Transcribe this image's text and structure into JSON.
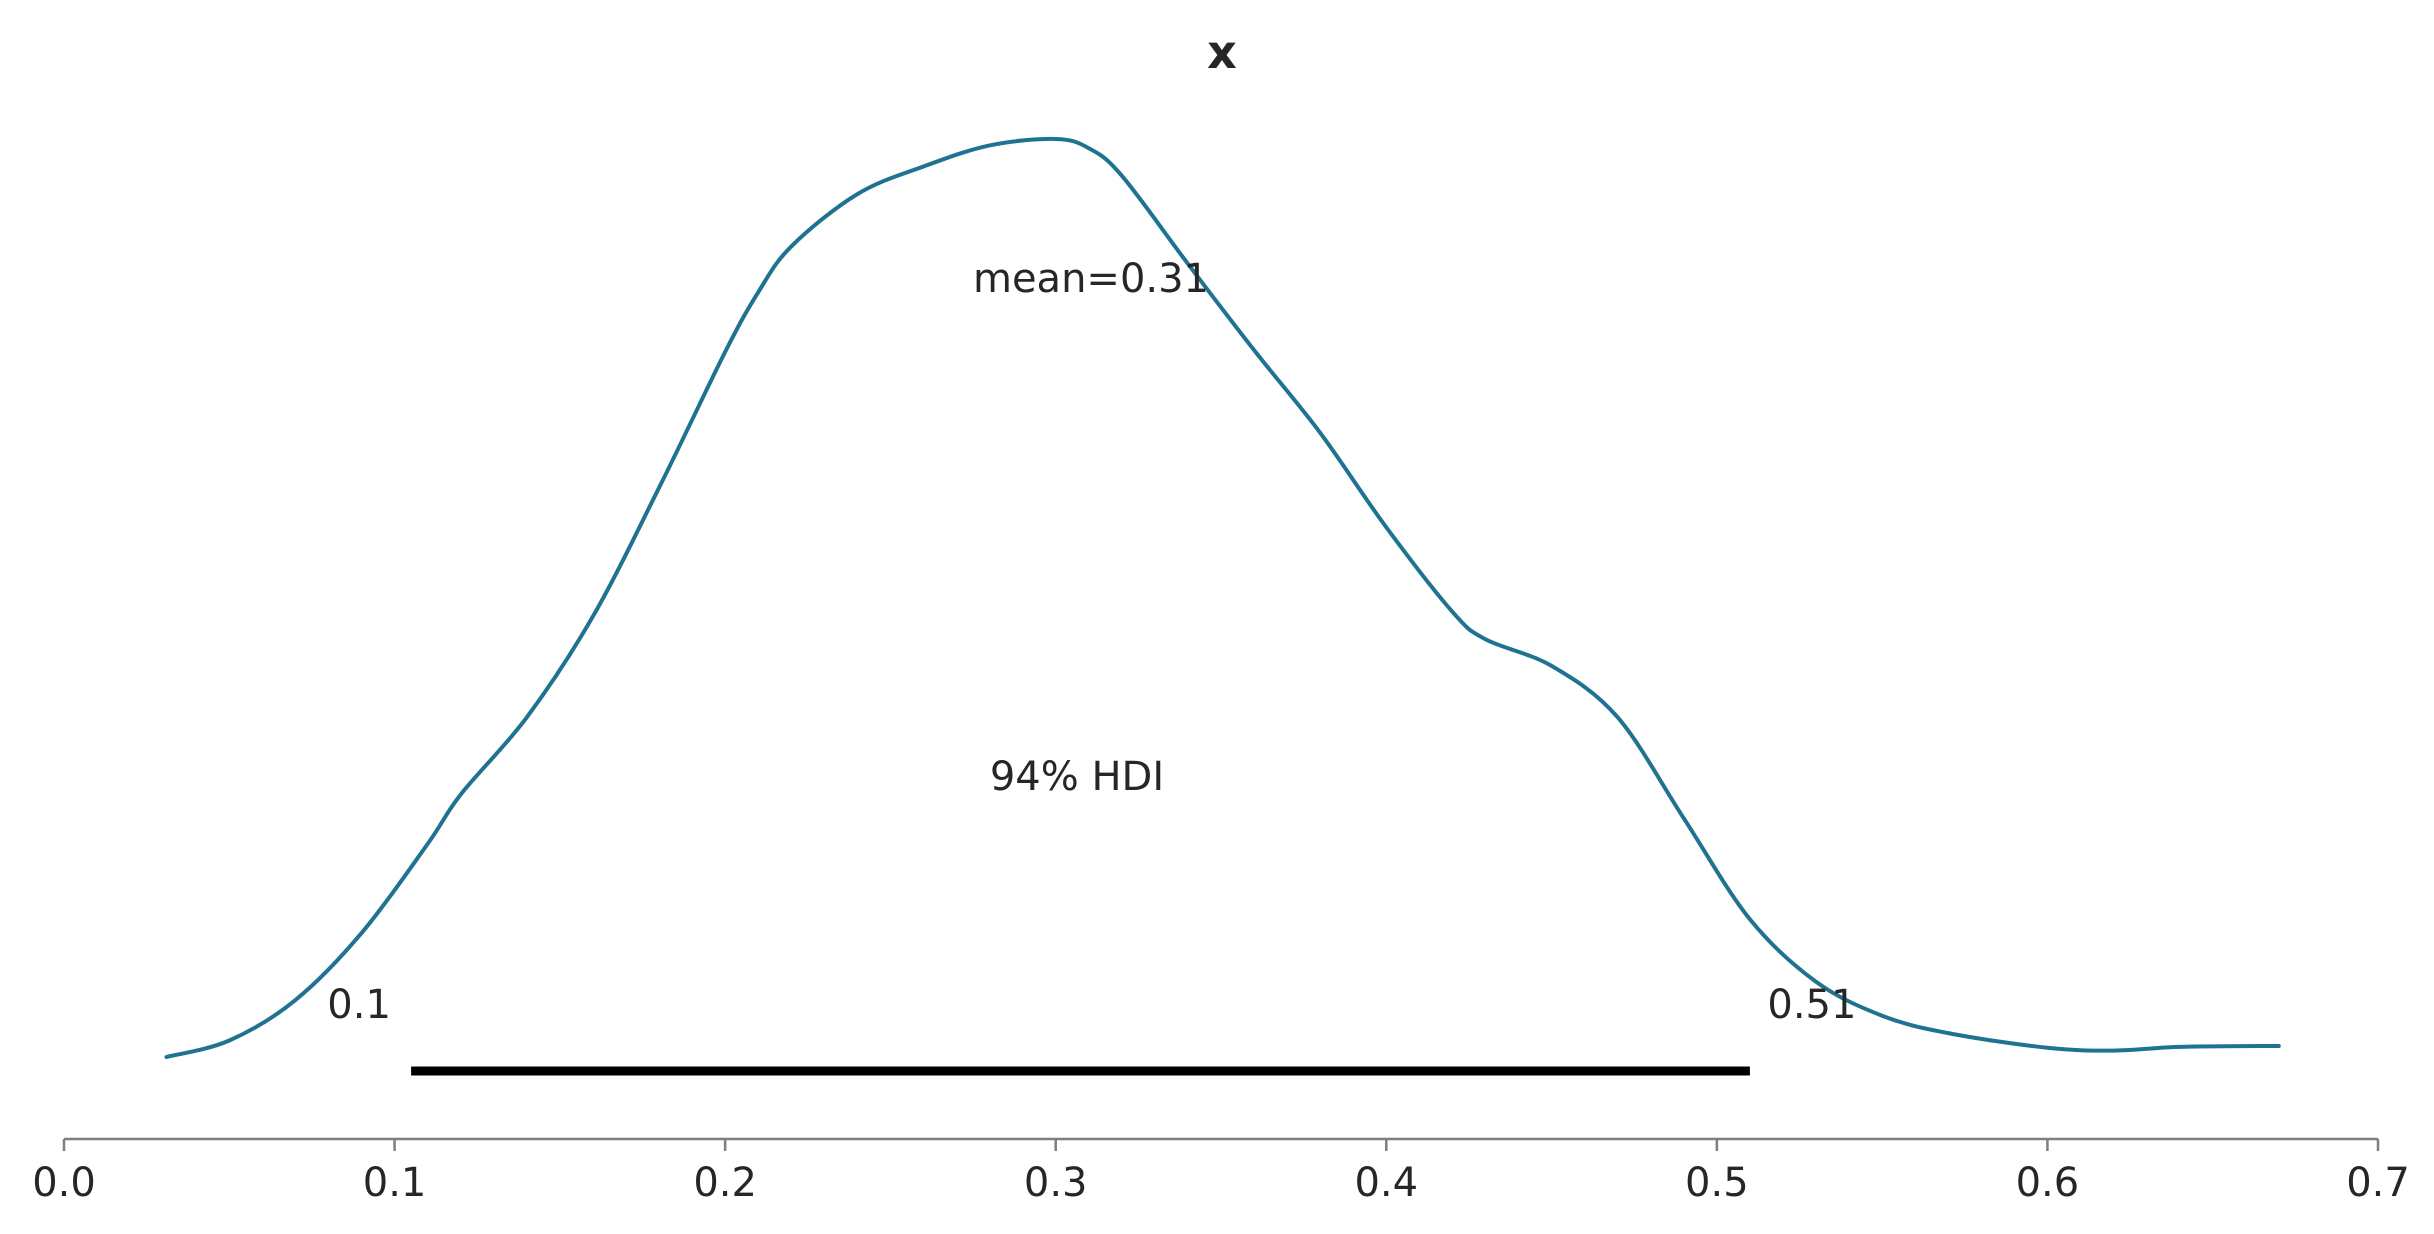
{
  "chart_data": {
    "type": "line",
    "title": "x",
    "xlabel": "",
    "ylabel": "",
    "xlim": [
      0.0,
      0.7
    ],
    "ylim": [
      0.0,
      1.0
    ],
    "grid": false,
    "x_ticks": [
      "0.0",
      "0.1",
      "0.2",
      "0.3",
      "0.4",
      "0.5",
      "0.6",
      "0.7"
    ],
    "y_ticks": [],
    "line_color": "#1f7391",
    "hdi_color": "#000000",
    "mean_label": "mean=0.31",
    "hdi_label": "94% HDI",
    "hdi": {
      "low": 0.105,
      "high": 0.51,
      "low_label": "0.1",
      "high_label": "0.51"
    },
    "density": {
      "x": [
        0.031,
        0.05,
        0.07,
        0.09,
        0.11,
        0.12,
        0.14,
        0.16,
        0.18,
        0.2,
        0.21,
        0.22,
        0.24,
        0.26,
        0.28,
        0.3,
        0.31,
        0.32,
        0.34,
        0.36,
        0.38,
        0.4,
        0.42,
        0.43,
        0.45,
        0.47,
        0.49,
        0.51,
        0.53,
        0.55,
        0.57,
        0.6,
        0.62,
        0.64,
        0.67
      ],
      "y": [
        0.0,
        0.018,
        0.062,
        0.135,
        0.232,
        0.286,
        0.37,
        0.48,
        0.62,
        0.768,
        0.833,
        0.883,
        0.94,
        0.97,
        0.993,
        1.0,
        0.99,
        0.96,
        0.864,
        0.77,
        0.68,
        0.577,
        0.485,
        0.455,
        0.426,
        0.37,
        0.26,
        0.15,
        0.082,
        0.045,
        0.026,
        0.01,
        0.007,
        0.011,
        0.012
      ]
    }
  }
}
